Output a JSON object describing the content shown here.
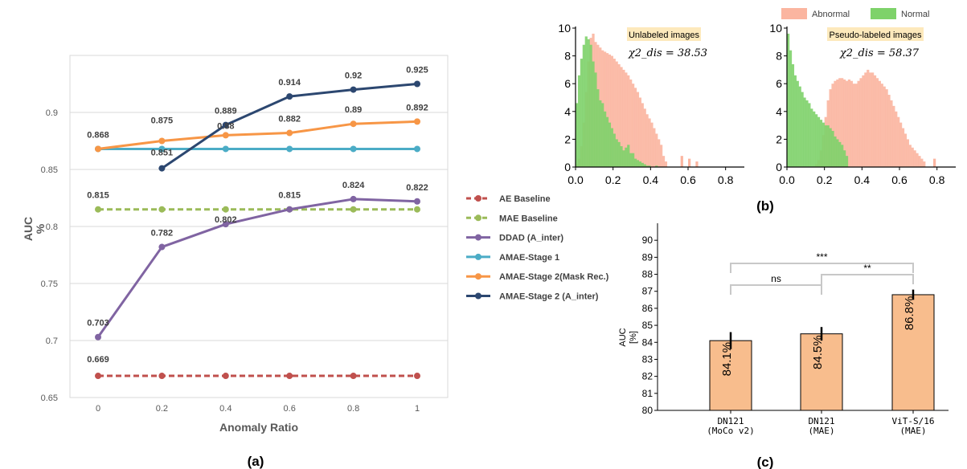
{
  "colors": {
    "ae": "#c0504d",
    "mae": "#9bbb59",
    "ddad": "#8064a2",
    "stage1": "#4bacc6",
    "stage2_mask": "#f79646",
    "stage2_inter": "#2c4770",
    "abnormal": "#fbb5a0",
    "normal": "#7ed26a",
    "bar": "#f8bd8d"
  },
  "chart_data": [
    {
      "type": "line",
      "panel_label": "(a)",
      "xlabel": "Anomaly Ratio",
      "ylabel_top": "AUC",
      "ylabel_bottom": "%",
      "ylim": [
        0.65,
        0.95
      ],
      "y_ticks": [
        "0.9",
        "0.85",
        "0.8",
        "0.75",
        "0.7",
        "0.65"
      ],
      "y_tick_values": [
        0.9,
        0.85,
        0.8,
        0.75,
        0.7,
        0.65
      ],
      "x_ticks": [
        "0",
        "0.2",
        "0.4",
        "0.6",
        "0.8",
        "1"
      ],
      "x": [
        0,
        0.2,
        0.4,
        0.6,
        0.8,
        1
      ],
      "grid": true,
      "legend": "right",
      "series": [
        {
          "name": "AE Baseline",
          "key": "ae",
          "dashed": true,
          "x": [
            0,
            0.2,
            0.4,
            0.6,
            0.8,
            1
          ],
          "values": [
            0.669,
            0.669,
            0.669,
            0.669,
            0.669,
            0.669
          ],
          "labels": [
            "0.669"
          ]
        },
        {
          "name": "MAE Baseline",
          "key": "mae",
          "dashed": true,
          "x": [
            0,
            0.2,
            0.4,
            0.6,
            0.8,
            1
          ],
          "values": [
            0.815,
            0.815,
            0.815,
            0.815,
            0.815,
            0.815
          ],
          "labels": [
            "0.815"
          ]
        },
        {
          "name": "DDAD (A_inter)",
          "key": "ddad",
          "dashed": false,
          "x": [
            0,
            0.2,
            0.4,
            0.6,
            0.8,
            1
          ],
          "values": [
            0.703,
            0.782,
            0.802,
            0.815,
            0.824,
            0.822
          ],
          "labels": [
            "0.703",
            "0.782",
            "0.802",
            "0.815",
            "0.824",
            "0.822"
          ]
        },
        {
          "name": "AMAE-Stage 1",
          "key": "stage1",
          "dashed": false,
          "x": [
            0,
            0.2,
            0.4,
            0.6,
            0.8,
            1
          ],
          "values": [
            0.868,
            0.868,
            0.868,
            0.868,
            0.868,
            0.868
          ],
          "labels": []
        },
        {
          "name": "AMAE-Stage 2(Mask Rec.)",
          "key": "stage2_mask",
          "dashed": false,
          "x": [
            0,
            0.2,
            0.4,
            0.6,
            0.8,
            1
          ],
          "values": [
            0.868,
            0.875,
            0.88,
            0.882,
            0.89,
            0.892
          ],
          "labels": [
            "0.868",
            "0.875",
            "0.88",
            "0.882",
            "0.89",
            "0.892"
          ]
        },
        {
          "name": "AMAE-Stage 2 (A_inter)",
          "key": "stage2_inter",
          "dashed": false,
          "x": [
            0.2,
            0.4,
            0.6,
            0.8,
            1
          ],
          "values": [
            0.851,
            0.889,
            0.914,
            0.92,
            0.925
          ],
          "labels": [
            "0.851",
            "0.889",
            "0.914",
            "0.92",
            "0.925"
          ]
        }
      ]
    },
    {
      "type": "bar",
      "subtype": "histogram",
      "panel_label": "(b)",
      "legend_entries": [
        "Abnormal",
        "Normal"
      ],
      "xlim": [
        0,
        0.9
      ],
      "ylim": [
        0,
        10
      ],
      "x_ticks": [
        "0.0",
        "0.2",
        "0.4",
        "0.6",
        "0.8"
      ],
      "y_ticks": [
        "0",
        "2",
        "4",
        "6",
        "8",
        "10"
      ],
      "bin_width": 0.0125,
      "panels": [
        {
          "title": "Unlabeled images",
          "statistic": "χ2_dis = 38.53",
          "abnormal": [
            0.2,
            0.6,
            1.5,
            3.2,
            5.4,
            7.6,
            9.3,
            9.6,
            9.0,
            8.8,
            8.6,
            8.4,
            8.3,
            8.2,
            8.1,
            8.0,
            7.8,
            7.6,
            7.4,
            7.2,
            7.0,
            6.8,
            6.6,
            6.3,
            6.0,
            5.7,
            5.4,
            5.0,
            4.6,
            4.2,
            3.8,
            3.5,
            3.2,
            2.8,
            2.4,
            2.0,
            1.6,
            0.8,
            0.4
          ],
          "normal": [
            4.6,
            6.6,
            7.8,
            8.8,
            9.4,
            9.2,
            8.8,
            7.6,
            6.8,
            5.6,
            4.8,
            4.6,
            4.0,
            3.6,
            3.2,
            2.8,
            2.4,
            2.0,
            1.8,
            1.5,
            1.2,
            1.4,
            1.6,
            1.0,
            1.0,
            0.6,
            0.5,
            0.4,
            0.3,
            0.2,
            0.1,
            0.1,
            0.0,
            0.0,
            0.1
          ],
          "abnormal_tail": [
            [
              0.56,
              0.8
            ],
            [
              0.6,
              0.6
            ],
            [
              0.64,
              0.4
            ]
          ],
          "normal_tail": []
        },
        {
          "title": "Pseudo-labeled images",
          "statistic": "χ2_dis = 58.37",
          "abnormal": [
            0.0,
            0.0,
            0.0,
            0.0,
            0.0,
            0.0,
            0.0,
            0.0,
            0.0,
            0.0,
            0.0,
            0.0,
            0.2,
            0.5,
            1.2,
            2.3,
            3.6,
            4.8,
            5.6,
            6.0,
            6.2,
            6.3,
            6.4,
            6.4,
            6.3,
            6.2,
            6.3,
            6.2,
            6.0,
            6.0,
            6.2,
            6.4,
            6.6,
            6.8,
            7.0,
            6.8,
            6.8,
            6.6,
            6.4,
            6.2,
            6.0,
            5.8,
            5.6,
            5.2,
            4.8,
            4.4,
            4.0,
            3.6,
            3.2,
            2.8,
            2.4,
            2.0,
            1.6,
            1.4,
            1.2,
            1.0,
            0.8,
            0.6,
            0.4
          ],
          "normal": [
            9.6,
            8.4,
            7.4,
            6.6,
            6.2,
            5.8,
            5.4,
            5.0,
            4.8,
            4.6,
            4.2,
            4.0,
            3.8,
            3.6,
            3.4,
            3.2,
            3.0,
            3.0,
            2.8,
            2.6,
            2.2,
            2.0,
            1.8,
            1.6,
            1.2,
            0.8
          ],
          "abnormal_tail": [
            [
              0.78,
              0.6
            ]
          ],
          "normal_tail": []
        }
      ]
    },
    {
      "type": "bar",
      "panel_label": "(c)",
      "ylabel": "AUC\n[%]",
      "ylabel_top": "AUC",
      "ylabel_bottom": "[%]",
      "ylim": [
        80,
        90.5
      ],
      "y_ticks": [
        "90",
        "89",
        "88",
        "87",
        "86",
        "85",
        "84",
        "83",
        "82",
        "81",
        "80"
      ],
      "y_tick_values": [
        90,
        89,
        88,
        87,
        86,
        85,
        84,
        83,
        82,
        81,
        80
      ],
      "categories": [
        "DN121\n(MoCo v2)",
        "DN121\n(MAE)",
        "ViT-S/16\n(MAE)"
      ],
      "category_lines": [
        [
          "DN121",
          "(MoCo v2)"
        ],
        [
          "DN121",
          "(MAE)"
        ],
        [
          "ViT-S/16",
          "(MAE)"
        ]
      ],
      "values": [
        84.1,
        84.5,
        86.8
      ],
      "bar_labels": [
        "84.1%",
        "84.5%",
        "86.8%"
      ],
      "errors": [
        0.5,
        0.4,
        0.3
      ],
      "significance": [
        {
          "from": 0,
          "to": 1,
          "label": "ns"
        },
        {
          "from": 1,
          "to": 2,
          "label": "**"
        },
        {
          "from": 0,
          "to": 2,
          "label": "***"
        }
      ]
    }
  ]
}
